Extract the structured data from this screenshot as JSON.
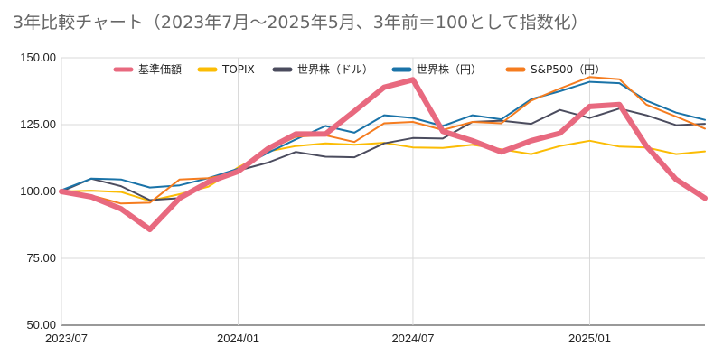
{
  "chart_data": {
    "type": "line",
    "title": "3年比較チャート（2023年7月～2025年5月、3年前＝100として指数化）",
    "xlabel": "",
    "ylabel": "",
    "ylim": [
      50,
      150
    ],
    "yticks": [
      "50.00",
      "75.00",
      "100.00",
      "125.00",
      "150.00"
    ],
    "xtick_labels": [
      "2023/07",
      "2024/01",
      "2024/07",
      "2025/01"
    ],
    "xtick_dates": [
      "2023-07-01",
      "2024-01-01",
      "2024-07-01",
      "2025-01-01"
    ],
    "x_range": [
      "2023-07-01",
      "2025-05-01"
    ],
    "grid": true,
    "legend_position": "top",
    "x": [
      "2023-07-01",
      "2023-08-01",
      "2023-09-01",
      "2023-10-01",
      "2023-11-01",
      "2023-12-01",
      "2024-01-01",
      "2024-02-01",
      "2024-03-01",
      "2024-04-01",
      "2024-05-01",
      "2024-06-01",
      "2024-07-01",
      "2024-08-01",
      "2024-09-01",
      "2024-10-01",
      "2024-11-01",
      "2024-12-01",
      "2025-01-01",
      "2025-02-01",
      "2025-03-01",
      "2025-04-01",
      "2025-05-01"
    ],
    "series": [
      {
        "name": "基準価額",
        "color": "#e8697f",
        "width": 6,
        "values": [
          100.0,
          98.0,
          93.5,
          85.8,
          97.5,
          103.5,
          107.5,
          116.0,
          121.5,
          121.5,
          130.0,
          139.0,
          141.8,
          122.5,
          119.0,
          114.8,
          119.0,
          121.8,
          131.8,
          132.5,
          117.0,
          104.5,
          97.5
        ]
      },
      {
        "name": "TOPIX",
        "color": "#fbbc04",
        "width": 2,
        "values": [
          100.0,
          100.3,
          99.8,
          96.5,
          99.0,
          101.8,
          109.0,
          115.0,
          117.0,
          118.0,
          117.5,
          118.2,
          116.5,
          116.3,
          117.5,
          115.8,
          114.0,
          117.0,
          119.0,
          116.8,
          116.5,
          114.0,
          115.0
        ]
      },
      {
        "name": "世界株（ドル）",
        "color": "#4b4c5e",
        "width": 2,
        "values": [
          100.0,
          104.8,
          102.0,
          96.8,
          97.5,
          104.0,
          107.8,
          110.8,
          114.8,
          113.0,
          112.8,
          118.0,
          120.0,
          119.8,
          126.0,
          126.5,
          125.3,
          130.5,
          127.5,
          131.0,
          128.5,
          124.8,
          125.3
        ]
      },
      {
        "name": "世界株（円）",
        "color": "#1a73a8",
        "width": 2,
        "values": [
          100.5,
          104.8,
          104.5,
          101.5,
          102.3,
          105.0,
          108.5,
          114.5,
          119.5,
          124.5,
          122.0,
          128.5,
          127.5,
          124.5,
          128.5,
          127.0,
          134.5,
          137.5,
          141.0,
          140.5,
          134.0,
          129.5,
          126.8
        ]
      },
      {
        "name": "S&P500（円）",
        "color": "#f57c1f",
        "width": 2,
        "values": [
          99.5,
          98.5,
          95.5,
          95.8,
          104.5,
          105.0,
          107.0,
          115.5,
          120.5,
          121.0,
          118.5,
          125.5,
          126.0,
          123.0,
          126.0,
          125.5,
          134.0,
          138.5,
          142.8,
          142.0,
          132.5,
          128.0,
          123.5
        ]
      }
    ]
  }
}
